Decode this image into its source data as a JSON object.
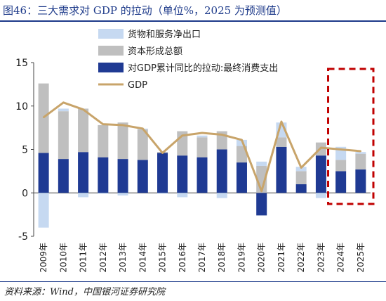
{
  "title": "图46：三大需求对 GDP 的拉动（单位%，2025 为预测值）",
  "source": "资料来源：Wind，中国银河证券研究院",
  "colors": {
    "net_exports": "#c6d9f1",
    "capital": "#bfbfbf",
    "consumption": "#1f3a93",
    "gdp_line": "#c8a46a",
    "highlight_box": "#c00000",
    "title": "#1d3a8a"
  },
  "chart_data": {
    "type": "bar",
    "stacked": true,
    "categories": [
      "2009年",
      "2010年",
      "2011年",
      "2012年",
      "2013年",
      "2014年",
      "2015年",
      "2016年",
      "2017年",
      "2018年",
      "2019年",
      "2020年",
      "2021年",
      "2022年",
      "2023年",
      "2024年",
      "2025年"
    ],
    "series": [
      {
        "name": "货物和服务净出口",
        "key": "net_exports",
        "values": [
          -4.0,
          0.3,
          -0.5,
          -0.1,
          -0.3,
          0.1,
          -0.1,
          -0.5,
          0.2,
          -0.6,
          0.7,
          0.5,
          1.7,
          0.5,
          -0.6,
          1.5,
          0.2
        ]
      },
      {
        "name": "资本形成总额",
        "key": "capital",
        "values": [
          8.0,
          5.5,
          5.0,
          3.7,
          4.2,
          3.5,
          0.1,
          2.8,
          2.3,
          2.1,
          1.9,
          3.1,
          1.1,
          1.5,
          1.5,
          1.3,
          1.8
        ]
      },
      {
        "name": "对GDP累计同比的拉动:最终消费支出",
        "key": "consumption",
        "values": [
          4.6,
          3.9,
          4.7,
          4.1,
          3.9,
          3.8,
          4.6,
          4.3,
          4.1,
          5.0,
          3.5,
          -2.6,
          5.3,
          1.0,
          4.3,
          2.5,
          2.7
        ]
      }
    ],
    "line": {
      "name": "GDP",
      "values": [
        8.7,
        10.4,
        9.6,
        7.9,
        7.8,
        7.4,
        4.6,
        6.6,
        6.9,
        6.7,
        6.1,
        0.2,
        8.2,
        2.9,
        5.2,
        5.0,
        4.8
      ]
    },
    "y_ticks": [
      "15",
      "10",
      "5",
      "0",
      "-5"
    ],
    "ylim": [
      -5,
      15
    ],
    "legend_position": "top-center",
    "highlight": {
      "categories": [
        "2024年",
        "2025年"
      ],
      "style": "dashed-box"
    }
  }
}
